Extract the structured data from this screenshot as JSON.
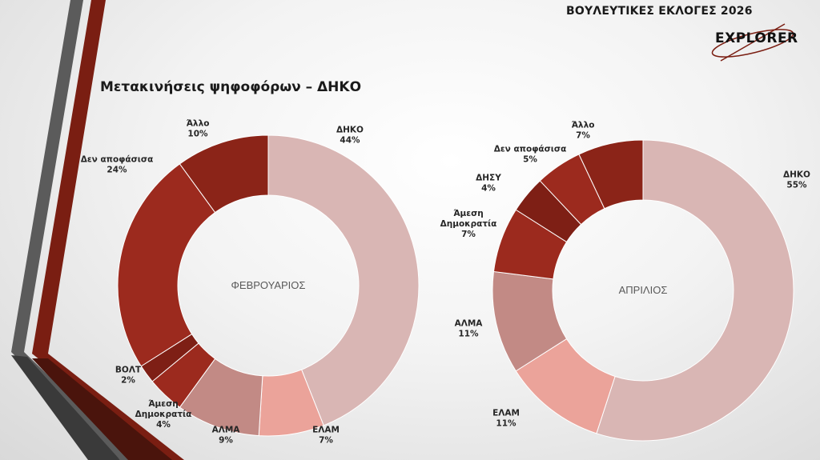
{
  "header": {
    "title": "ΒΟΥΛΕΥΤΙΚΕΣ ΕΚΛΟΓΕΣ 2026",
    "logo_text": "EXPLORER"
  },
  "slide_title": "Μετακινήσεις ψηφοφόρων – ΔΗΚΟ",
  "colors": {
    "dark_red": "#8B2418",
    "red": "#9C2A1E",
    "mauve": "#C28A85",
    "pink": "#EBA39A",
    "light_pink": "#D9B6B4",
    "stripe_gray": "#555555",
    "stripe_red": "#7A1E12"
  },
  "chart_data": [
    {
      "type": "pie",
      "donut": true,
      "center_label": "ΦΕΒΡΟΥΑΡΙΟΣ",
      "slices": [
        {
          "label": "ΔΗΚΟ",
          "value": 44,
          "value_label": "44%",
          "color": "#D9B6B4"
        },
        {
          "label": "ΕΛΑΜ",
          "value": 7,
          "value_label": "7%",
          "color": "#EBA39A"
        },
        {
          "label": "ΑΛΜΑ",
          "value": 9,
          "value_label": "9%",
          "color": "#C28A85"
        },
        {
          "label": "Άμεση Δημοκρατία",
          "value": 4,
          "value_label": "4%",
          "color": "#9C2A1E"
        },
        {
          "label": "ΒΟΛΤ",
          "value": 2,
          "value_label": "2%",
          "color": "#7E1F15"
        },
        {
          "label": "Δεν αποφάσισα",
          "value": 24,
          "value_label": "24%",
          "color": "#9C2A1E"
        },
        {
          "label": "Άλλο",
          "value": 10,
          "value_label": "10%",
          "color": "#8B2418"
        }
      ]
    },
    {
      "type": "pie",
      "donut": true,
      "center_label": "ΑΠΡΙΛΙΟΣ",
      "slices": [
        {
          "label": "ΔΗΚΟ",
          "value": 55,
          "value_label": "55%",
          "color": "#D9B6B4"
        },
        {
          "label": "ΕΛΑΜ",
          "value": 11,
          "value_label": "11%",
          "color": "#EBA39A"
        },
        {
          "label": "ΑΛΜΑ",
          "value": 11,
          "value_label": "11%",
          "color": "#C28A85"
        },
        {
          "label": "Άμεση Δημοκρατία",
          "value": 7,
          "value_label": "7%",
          "color": "#9C2A1E"
        },
        {
          "label": "ΔΗΣΥ",
          "value": 4,
          "value_label": "4%",
          "color": "#7E1F15"
        },
        {
          "label": "Δεν αποφάσισα",
          "value": 5,
          "value_label": "5%",
          "color": "#9C2A1E"
        },
        {
          "label": "Άλλο",
          "value": 7,
          "value_label": "7%",
          "color": "#8B2418"
        }
      ]
    }
  ]
}
